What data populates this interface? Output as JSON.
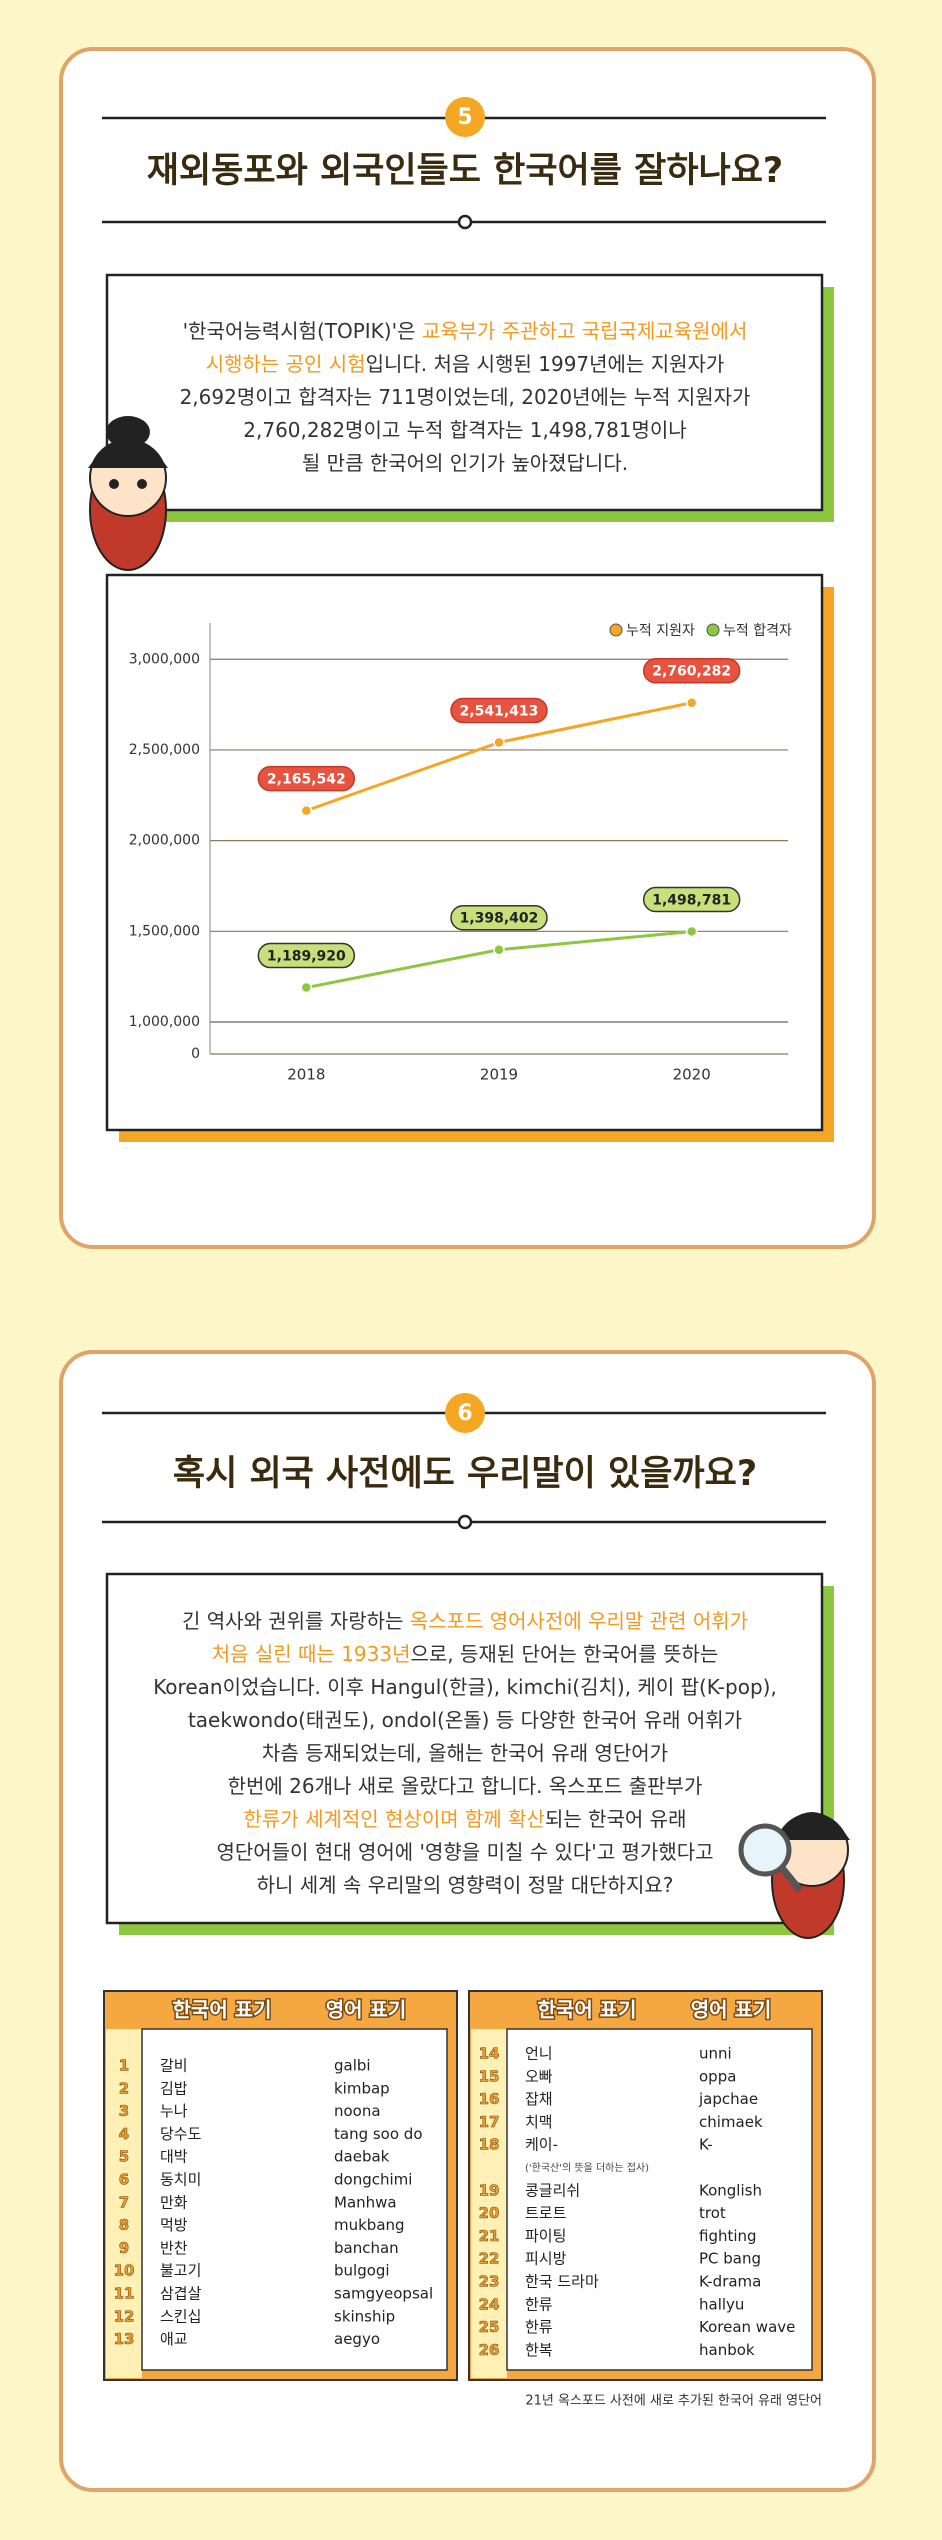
{
  "section1": {
    "number": 5,
    "title": "재외동포와 외국인들도 한국어를 잘하나요?",
    "body": [
      [
        {
          "text": "'한국어능력시험(TOPIK)'은 ",
          "highlight": false
        },
        {
          "text": "교육부가 주관하고 국립국제교육원에서",
          "highlight": true
        }
      ],
      [
        {
          "text": "시행하는 공인 시험",
          "highlight": true
        },
        {
          "text": "입니다. 처음 시행된 1997년에는 지원자가",
          "highlight": false
        }
      ],
      [
        {
          "text": "2,692명이고 합격자는 711명이었는데, 2020년에는 누적 지원자가",
          "highlight": false
        }
      ],
      [
        {
          "text": "2,760,282명이고 누적 합격자는 1,498,781명이나",
          "highlight": false
        }
      ],
      [
        {
          "text": "될 만큼 한국어의 인기가 높아졌답니다.",
          "highlight": false
        }
      ]
    ]
  },
  "chart_data": {
    "type": "line",
    "categories": [
      "2018",
      "2019",
      "2020"
    ],
    "series": [
      {
        "name": "누적 지원자",
        "color": "#f5a623",
        "values": [
          2165542,
          2541413,
          2760282
        ],
        "value_labels": [
          "2,165,542",
          "2,541,413",
          "2,760,282"
        ]
      },
      {
        "name": "누적 합격자",
        "color": "#8dc63f",
        "values": [
          1189920,
          1398402,
          1498781
        ],
        "value_labels": [
          "1,189,920",
          "1,398,402",
          "1,498,781"
        ]
      }
    ],
    "ylim": [
      0,
      3200000
    ],
    "yticks": [
      0,
      {
        "value": 1000000,
        "label": "1,000,000"
      },
      {
        "value": 1500000,
        "label": "1,500,000"
      },
      {
        "value": 2000000,
        "label": "2,000,000"
      },
      {
        "value": 2500000,
        "label": "2,500,000"
      },
      {
        "value": 3000000,
        "label": "3,000,000"
      }
    ],
    "axis_break": true,
    "grid": true,
    "legend": "top-right"
  },
  "section2": {
    "number": 6,
    "title": "혹시 외국 사전에도 우리말이 있을까요?",
    "body": [
      [
        {
          "text": "긴 역사와 권위를 자랑하는 ",
          "highlight": false
        },
        {
          "text": "옥스포드 영어사전에 우리말 관련 어휘가",
          "highlight": true
        }
      ],
      [
        {
          "text": "처음 실린 때는 1933년",
          "highlight": true
        },
        {
          "text": "으로, 등재된 단어는 한국어를 뜻하는",
          "highlight": false
        }
      ],
      [
        {
          "text": "Korean이었습니다. 이후 Hangul(한글), kimchi(김치), 케이 팝(K-pop),",
          "highlight": false
        }
      ],
      [
        {
          "text": "taekwondo(태권도), ondol(온돌) 등 다양한 한국어 유래 어휘가",
          "highlight": false
        }
      ],
      [
        {
          "text": "차츰 등재되었는데, 올해는 한국어 유래 영단어가",
          "highlight": false
        }
      ],
      [
        {
          "text": "한번에 26개나 새로 올랐다고 합니다. 옥스포드 출판부가",
          "highlight": false
        }
      ],
      [
        {
          "text": "한류가 세계적인 현상이며 함께 확산",
          "highlight": true
        },
        {
          "text": "되는 한국어 유래",
          "highlight": false
        }
      ],
      [
        {
          "text": "영단어들이 현대 영어에 '영향을 미칠 수 있다'고 평가했다고",
          "highlight": false
        }
      ],
      [
        {
          "text": "하니 세계 속 우리말의 영향력이 정말 대단하지요?",
          "highlight": false
        }
      ]
    ],
    "tables": [
      {
        "headers": [
          "한국어 표기",
          "영어 표기"
        ],
        "rows": [
          {
            "number": 1,
            "korean": "갈비",
            "english": "galbi"
          },
          {
            "number": 2,
            "korean": "김밥",
            "english": "kimbap"
          },
          {
            "number": 3,
            "korean": "누나",
            "english": "noona"
          },
          {
            "number": 4,
            "korean": "당수도",
            "english": "tang soo do"
          },
          {
            "number": 5,
            "korean": "대박",
            "english": "daebak"
          },
          {
            "number": 6,
            "korean": "동치미",
            "english": "dongchimi"
          },
          {
            "number": 7,
            "korean": "만화",
            "english": "Manhwa"
          },
          {
            "number": 8,
            "korean": "먹방",
            "english": "mukbang"
          },
          {
            "number": 9,
            "korean": "반찬",
            "english": "banchan"
          },
          {
            "number": 10,
            "korean": "불고기",
            "english": "bulgogi"
          },
          {
            "number": 11,
            "korean": "삼겹살",
            "english": "samgyeopsal"
          },
          {
            "number": 12,
            "korean": "스킨십",
            "english": "skinship"
          },
          {
            "number": 13,
            "korean": "애교",
            "english": "aegyo"
          }
        ]
      },
      {
        "headers": [
          "한국어 표기",
          "영어 표기"
        ],
        "rows": [
          {
            "number": 14,
            "korean": "언니",
            "english": "unni"
          },
          {
            "number": 15,
            "korean": "오빠",
            "english": "oppa"
          },
          {
            "number": 16,
            "korean": "잡채",
            "english": "japchae"
          },
          {
            "number": 17,
            "korean": "치맥",
            "english": "chimaek"
          },
          {
            "number": 18,
            "korean": "케이-",
            "english": "K-",
            "note": "('한국산'의 뜻을 더하는 접사)"
          },
          {
            "number": 19,
            "korean": "콩글리쉬",
            "english": "Konglish"
          },
          {
            "number": 20,
            "korean": "트로트",
            "english": "trot"
          },
          {
            "number": 21,
            "korean": "파이팅",
            "english": "fighting"
          },
          {
            "number": 22,
            "korean": "피시방",
            "english": "PC bang"
          },
          {
            "number": 23,
            "korean": "한국 드라마",
            "english": "K-drama"
          },
          {
            "number": 24,
            "korean": "한류",
            "english": "hallyu"
          },
          {
            "number": 25,
            "korean": "한류",
            "english": "Korean wave"
          },
          {
            "number": 26,
            "korean": "한복",
            "english": "hanbok"
          }
        ]
      }
    ],
    "footnote": "21년 옥스포드 사전에 새로 추가된 한국어 유래 영단어"
  }
}
